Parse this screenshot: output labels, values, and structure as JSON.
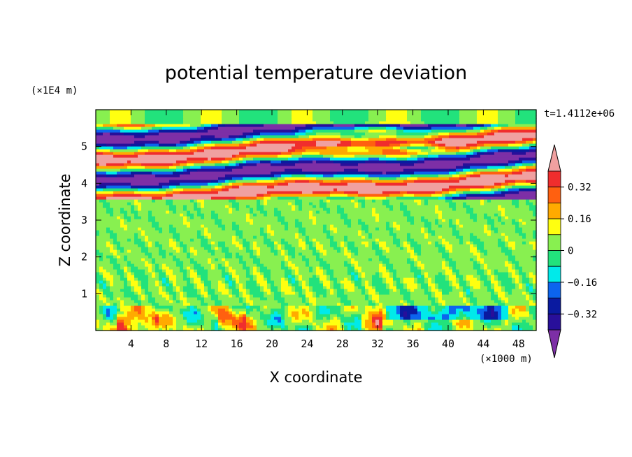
{
  "chart_data": {
    "type": "heatmap",
    "title": "potential temperature deviation",
    "xlabel": "X coordinate",
    "ylabel": "Z coordinate",
    "x_unit": "(×1000 m)",
    "y_unit": "(×1E4 m)",
    "time_label": "t=1.4112e+06",
    "xlim": [
      0,
      50
    ],
    "ylim": [
      0,
      6
    ],
    "x_ticks": [
      4,
      8,
      12,
      16,
      20,
      24,
      28,
      32,
      36,
      40,
      44,
      48
    ],
    "y_ticks": [
      1,
      2,
      3,
      4,
      5
    ],
    "colorbar": {
      "levels": [
        -0.4,
        -0.32,
        -0.24,
        -0.16,
        -0.08,
        0,
        0.08,
        0.16,
        0.24,
        0.32,
        0.4
      ],
      "tick_labels": [
        "0.32",
        "0.16",
        "0",
        "−0.16",
        "−0.32"
      ],
      "tick_values": [
        0.32,
        0.16,
        0,
        -0.16,
        -0.32
      ],
      "colors": [
        "#7d2fa6",
        "#280f9a",
        "#0a1aa0",
        "#0c64ee",
        "#00eaea",
        "#22e27c",
        "#88f050",
        "#ffff10",
        "#ffaa00",
        "#ff6010",
        "#f02d2d",
        "#f0a0a0"
      ]
    }
  }
}
